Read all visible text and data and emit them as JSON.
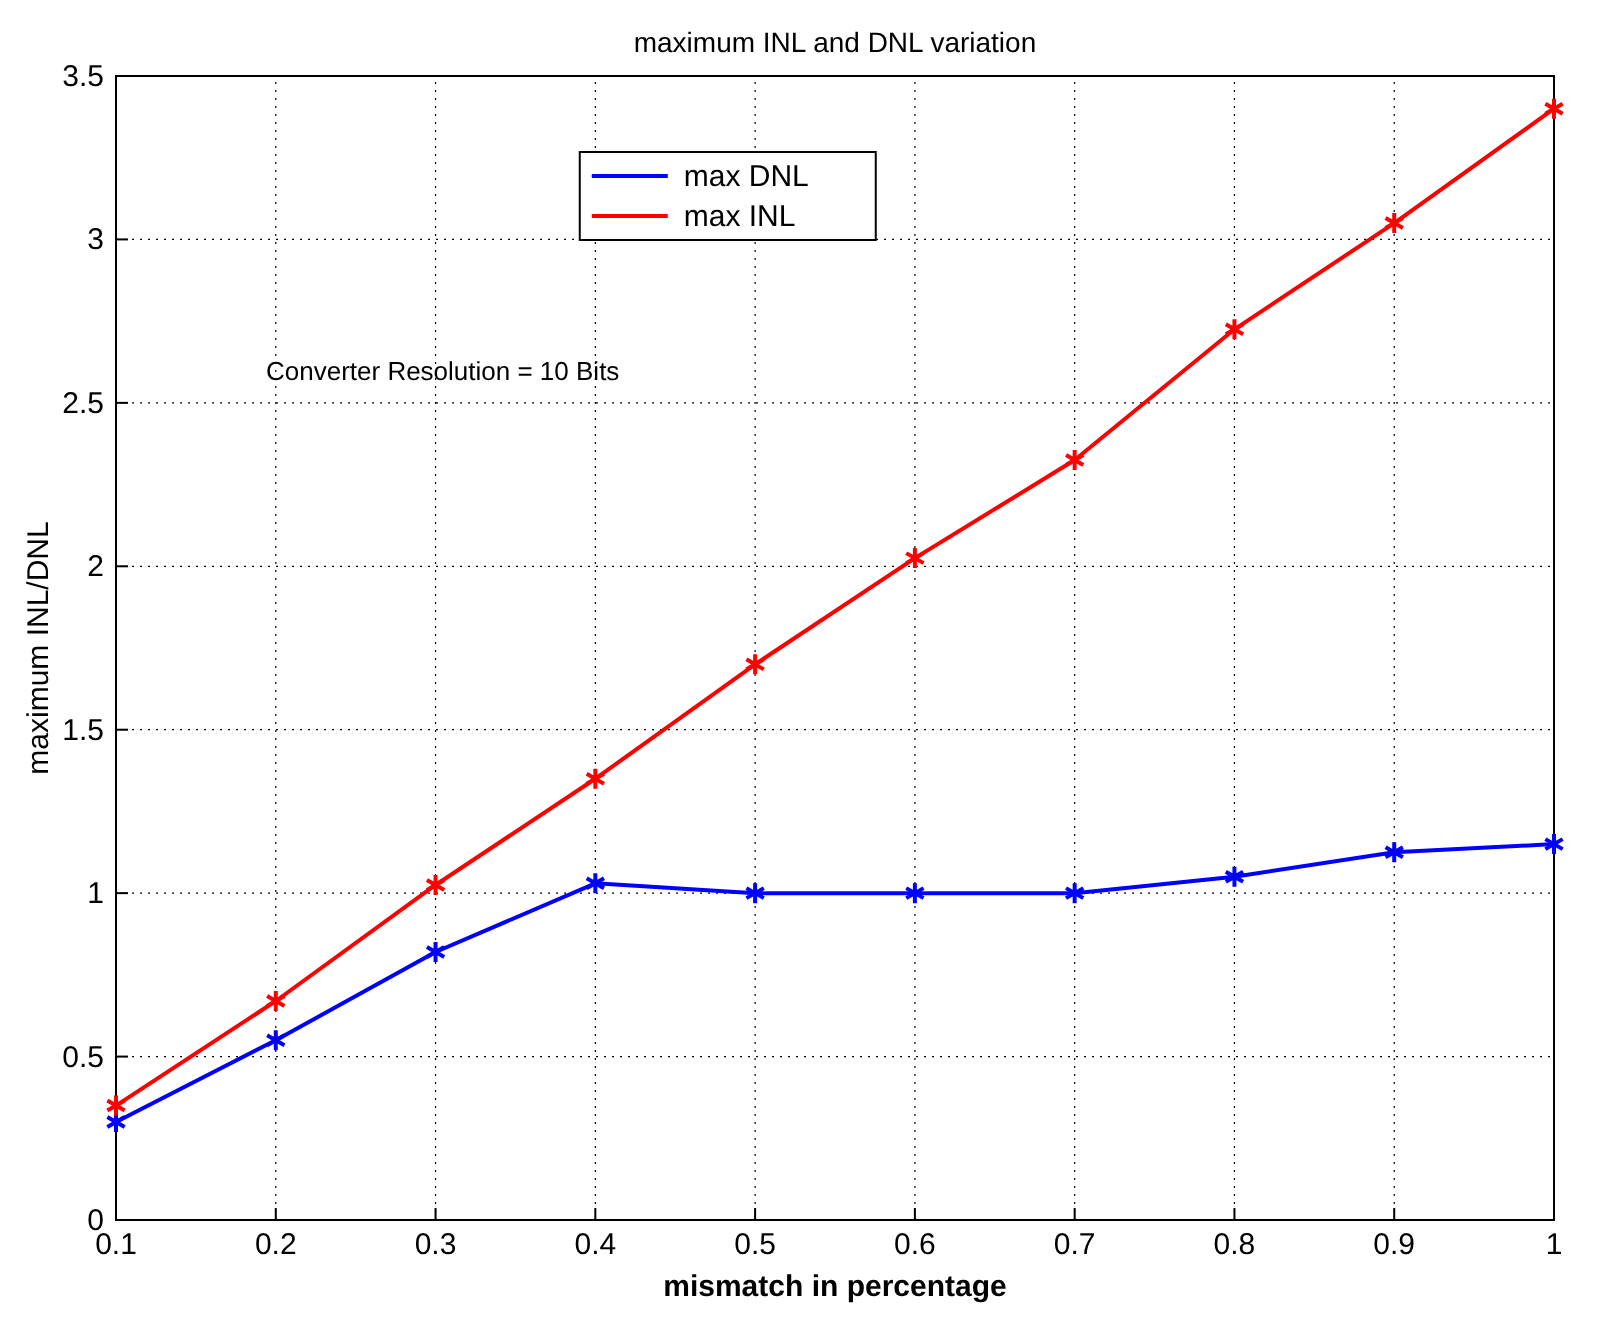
{
  "chart_data": {
    "type": "line",
    "title": "maximum INL and DNL variation",
    "xlabel": "mismatch in percentage",
    "ylabel": "maximum INL/DNL",
    "x": [
      0.1,
      0.2,
      0.3,
      0.4,
      0.5,
      0.6,
      0.7,
      0.8,
      0.9,
      1
    ],
    "series": [
      {
        "name": "max DNL",
        "color": "#0000ff",
        "values": [
          0.3,
          0.55,
          0.82,
          1.03,
          1.0,
          1.0,
          1.0,
          1.05,
          1.125,
          1.15
        ]
      },
      {
        "name": "max INL",
        "color": "#ff0000",
        "values": [
          0.35,
          0.67,
          1.025,
          1.35,
          1.7,
          2.025,
          2.325,
          2.725,
          3.05,
          3.4
        ]
      }
    ],
    "xlim": [
      0.1,
      1
    ],
    "xticks": [
      0.1,
      0.2,
      0.3,
      0.4,
      0.5,
      0.6,
      0.7,
      0.8,
      0.9,
      1
    ],
    "ylim": [
      0,
      3.5
    ],
    "yticks": [
      0,
      0.5,
      1,
      1.5,
      2,
      2.5,
      3,
      3.5
    ],
    "grid": true,
    "legend": "top",
    "marker": "cross",
    "line_style": "solid",
    "annotations": [
      "Converter Resolution = 10 Bits"
    ]
  }
}
